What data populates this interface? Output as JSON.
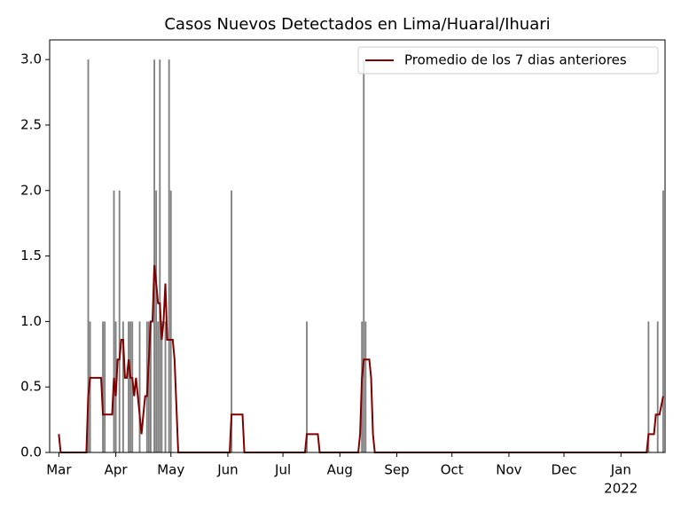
{
  "chart_data": {
    "type": "bar",
    "title": "Casos Nuevos Detectados en Lima/Huaral/Ihuari",
    "xlim": [
      -5,
      330
    ],
    "xticks": [
      {
        "value": 0,
        "label": "Mar"
      },
      {
        "value": 31,
        "label": "Apr"
      },
      {
        "value": 61,
        "label": "May"
      },
      {
        "value": 92,
        "label": "Jun"
      },
      {
        "value": 122,
        "label": "Jul"
      },
      {
        "value": 153,
        "label": "Aug"
      },
      {
        "value": 184,
        "label": "Sep"
      },
      {
        "value": 214,
        "label": "Oct"
      },
      {
        "value": 245,
        "label": "Nov"
      },
      {
        "value": 275,
        "label": "Dec"
      },
      {
        "value": 306,
        "label": "Jan"
      }
    ],
    "x_sublabel": "2022",
    "ylim": [
      0,
      3.15
    ],
    "yticks": [
      {
        "value": 0,
        "label": "0.0"
      },
      0.5,
      {
        "value": 1,
        "label": "1.0"
      },
      1.5,
      {
        "value": 2,
        "label": "2.0"
      },
      2.5,
      {
        "value": 3,
        "label": "3.0"
      }
    ],
    "grid": false,
    "legend": "upper right",
    "series": [
      {
        "type": "bar",
        "color": "#808080",
        "x": [
          16,
          17,
          24,
          25,
          30,
          31,
          33,
          35,
          38,
          39,
          40,
          44,
          48,
          49,
          50,
          52,
          53,
          54,
          55,
          56,
          58,
          60,
          61,
          94,
          135,
          165,
          166,
          167,
          321,
          326,
          329
        ],
        "values": [
          3,
          1,
          1,
          1,
          2,
          1,
          2,
          1,
          1,
          1,
          1,
          1,
          1,
          1,
          1,
          3,
          2,
          1,
          3,
          1,
          1,
          3,
          2,
          2,
          1,
          1,
          3,
          1,
          1,
          1,
          2
        ]
      },
      {
        "type": "line",
        "name": "Promedio de los 7 dias anteriores",
        "color": "#800000",
        "x": [
          0,
          1,
          15,
          16,
          17,
          23,
          24,
          29,
          30,
          31,
          32,
          33,
          34,
          35,
          36,
          37,
          38,
          39,
          40,
          41,
          42,
          43,
          45,
          46,
          47,
          48,
          49,
          50,
          51,
          52,
          53,
          54,
          55,
          56,
          57,
          58,
          59,
          62,
          63,
          65,
          93,
          94,
          100,
          101,
          134,
          135,
          141,
          142,
          163,
          164,
          165,
          166,
          169,
          170,
          171,
          172,
          320,
          321,
          324,
          325,
          327,
          329
        ],
        "values": [
          0.14,
          0,
          0,
          0.43,
          0.57,
          0.57,
          0.29,
          0.29,
          0.57,
          0.43,
          0.71,
          0.71,
          0.86,
          0.86,
          0.57,
          0.57,
          0.71,
          0.57,
          0.57,
          0.43,
          0.57,
          0.43,
          0.14,
          0.29,
          0.43,
          0.43,
          0.71,
          1.0,
          1.0,
          1.43,
          1.29,
          1.14,
          1.14,
          0.86,
          1.0,
          1.29,
          0.86,
          0.86,
          0.71,
          0,
          0,
          0.29,
          0.29,
          0,
          0,
          0.14,
          0.14,
          0,
          0,
          0.14,
          0.57,
          0.71,
          0.71,
          0.57,
          0.14,
          0,
          0,
          0.14,
          0.14,
          0.29,
          0.29,
          0.43
        ]
      }
    ]
  }
}
